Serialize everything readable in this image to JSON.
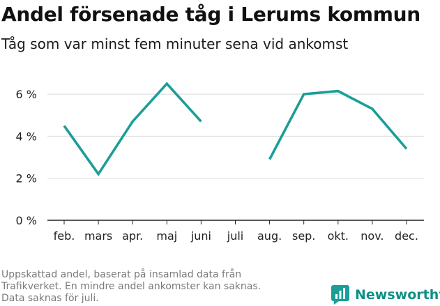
{
  "header": {
    "title": "Andel försenade tåg i Lerums kommun",
    "subtitle": "Tåg som var minst fem minuter sena vid ankomst"
  },
  "chart_data": {
    "type": "line",
    "title": "Andel försenade tåg i Lerums kommun",
    "subtitle": "Tåg som var minst fem minuter sena vid ankomst",
    "xlabel": "",
    "ylabel": "",
    "categories": [
      "feb.",
      "mars",
      "apr.",
      "maj",
      "juni",
      "juli",
      "aug.",
      "sep.",
      "okt.",
      "nov.",
      "dec."
    ],
    "series": [
      {
        "name": "Andel försenade tåg",
        "values": [
          4.5,
          2.2,
          4.7,
          6.5,
          4.7,
          null,
          2.9,
          6.0,
          6.15,
          5.3,
          3.4
        ]
      }
    ],
    "ylim": [
      0,
      7
    ],
    "yticks": [
      0,
      2,
      4,
      6
    ],
    "ytick_labels": [
      "0 %",
      "2 %",
      "4 %",
      "6 %"
    ],
    "grid": true,
    "line_color": "#1b9e97"
  },
  "footnote": {
    "lines": [
      "Uppskattad andel, baserat på insamlad data från",
      "Trafikverket. En mindre andel ankomster kan saknas.",
      "Data saknas för juli."
    ]
  },
  "brand": {
    "name": "Newsworthy",
    "icon": "newsworthy-logo-icon",
    "color": "#0f8f86"
  }
}
